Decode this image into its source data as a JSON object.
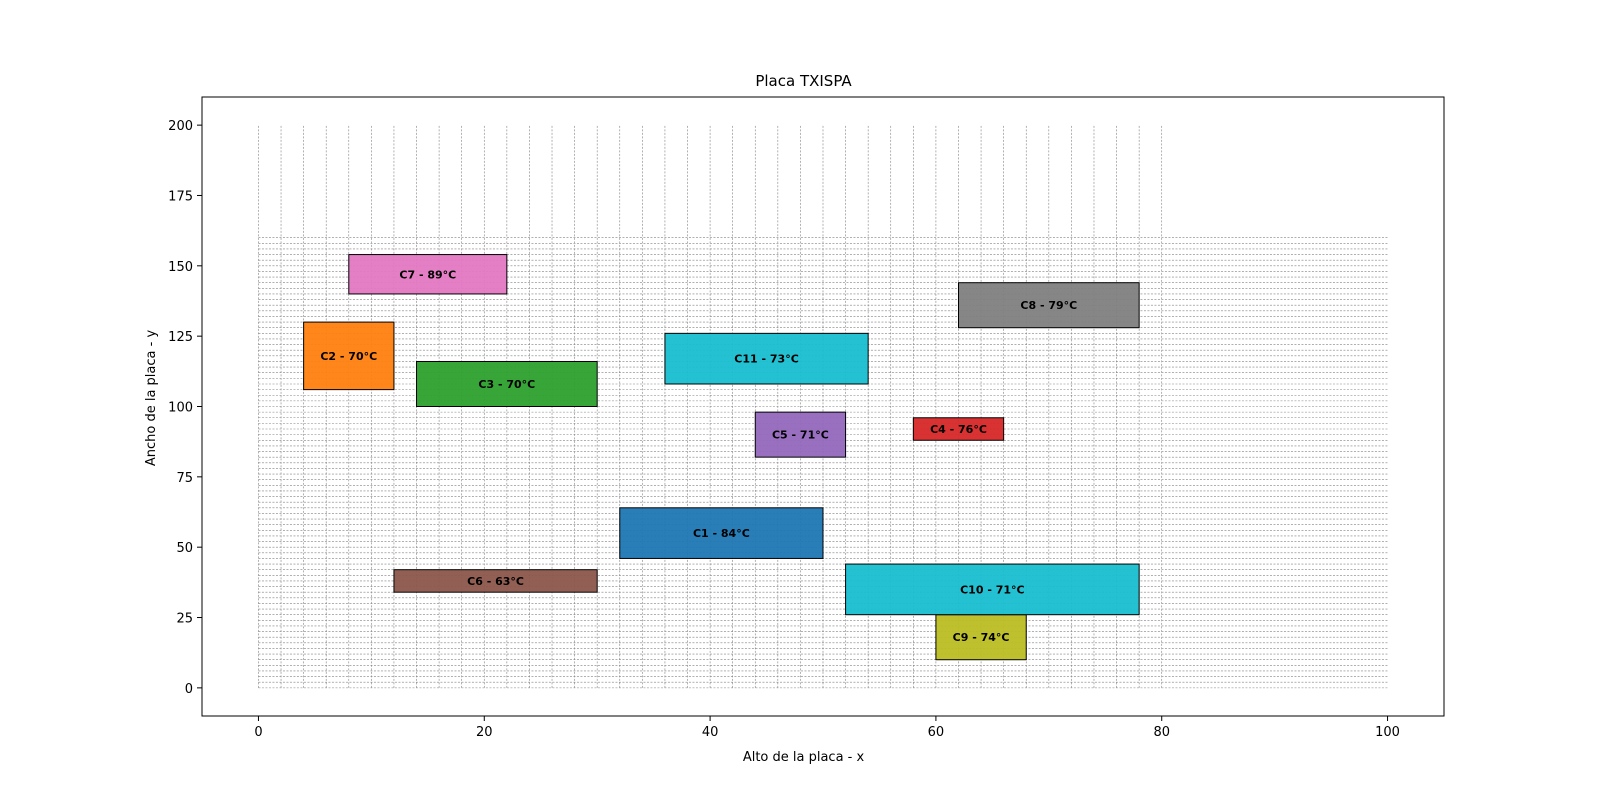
{
  "chart_data": {
    "type": "rectangles",
    "title": "Placa TXISPA",
    "xlabel": "Alto de la placa - x",
    "ylabel": "Ancho de la placa - y",
    "xlim": [
      -5,
      105
    ],
    "ylim": [
      -10,
      210
    ],
    "xticks": [
      0,
      20,
      40,
      60,
      80,
      100
    ],
    "yticks": [
      0,
      25,
      50,
      75,
      100,
      125,
      150,
      175,
      200
    ],
    "grid": {
      "vertical_lines": {
        "x_start": 0,
        "x_end": 80,
        "step": 2,
        "y_start": 0,
        "y_end": 200
      },
      "horizontal_lines": {
        "y_start": 0,
        "y_end": 160,
        "step": 2,
        "x_start": 0,
        "x_end": 100
      }
    },
    "components": [
      {
        "name": "C1",
        "label": "C1 - 84°C",
        "x0": 32,
        "x1": 50,
        "y0": 46,
        "y1": 64,
        "color": "#1f77b4"
      },
      {
        "name": "C2",
        "label": "C2 - 70°C",
        "x0": 4,
        "x1": 12,
        "y0": 106,
        "y1": 130,
        "color": "#ff7f0e"
      },
      {
        "name": "C3",
        "label": "C3 - 70°C",
        "x0": 14,
        "x1": 30,
        "y0": 100,
        "y1": 116,
        "color": "#2ca02c"
      },
      {
        "name": "C4",
        "label": "C4 - 76°C",
        "x0": 58,
        "x1": 66,
        "y0": 88,
        "y1": 96,
        "color": "#d62728"
      },
      {
        "name": "C5",
        "label": "C5 - 71°C",
        "x0": 44,
        "x1": 52,
        "y0": 82,
        "y1": 98,
        "color": "#9467bd"
      },
      {
        "name": "C6",
        "label": "C6 - 63°C",
        "x0": 12,
        "x1": 30,
        "y0": 34,
        "y1": 42,
        "color": "#8c564b"
      },
      {
        "name": "C7",
        "label": "C7 - 89°C",
        "x0": 8,
        "x1": 22,
        "y0": 140,
        "y1": 154,
        "color": "#e377c2"
      },
      {
        "name": "C8",
        "label": "C8 - 79°C",
        "x0": 62,
        "x1": 78,
        "y0": 128,
        "y1": 144,
        "color": "#7f7f7f"
      },
      {
        "name": "C9",
        "label": "C9 - 74°C",
        "x0": 60,
        "x1": 68,
        "y0": 10,
        "y1": 26,
        "color": "#bcbd22"
      },
      {
        "name": "C10",
        "label": "C10 - 71°C",
        "x0": 52,
        "x1": 78,
        "y0": 26,
        "y1": 44,
        "color": "#17becf"
      },
      {
        "name": "C11",
        "label": "C11 - 73°C",
        "x0": 36,
        "x1": 54,
        "y0": 108,
        "y1": 126,
        "color": "#17becf"
      }
    ]
  }
}
